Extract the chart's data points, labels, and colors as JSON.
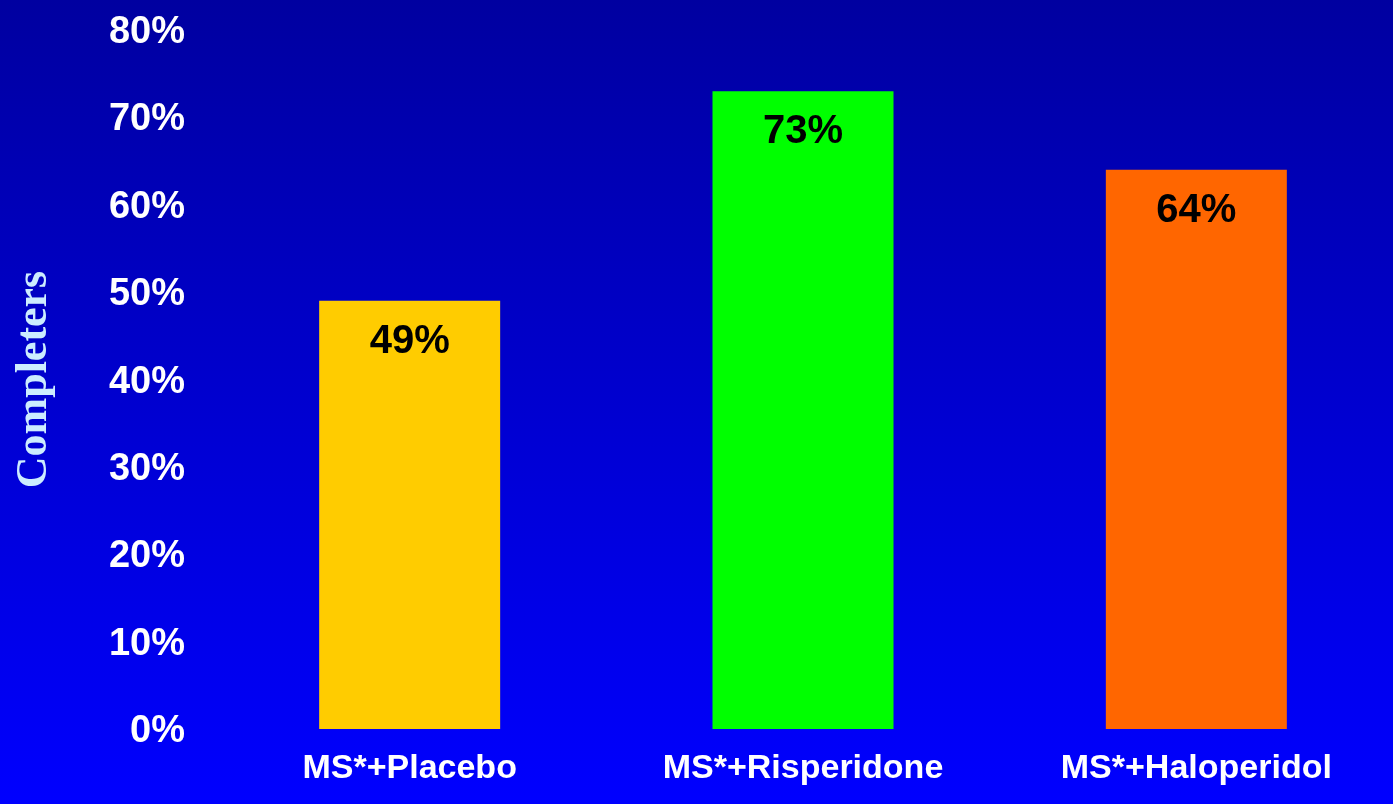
{
  "chart_data": {
    "type": "bar",
    "ylabel": "Completers",
    "categories": [
      "MS*+Placebo",
      "MS*+Risperidone",
      "MS*+Haloperidol"
    ],
    "values": [
      49,
      73,
      64
    ],
    "colors": [
      "#ffcc00",
      "#00ff00",
      "#ff6600"
    ],
    "value_labels": [
      "49%",
      "73%",
      "64%"
    ],
    "ylim": [
      0,
      80
    ],
    "yticks": [
      {
        "value": 0,
        "label": "0%"
      },
      {
        "value": 10,
        "label": "10%"
      },
      {
        "value": 20,
        "label": "20%"
      },
      {
        "value": 30,
        "label": "30%"
      },
      {
        "value": 40,
        "label": "40%"
      },
      {
        "value": 50,
        "label": "50%"
      },
      {
        "value": 60,
        "label": "60%"
      },
      {
        "value": 70,
        "label": "70%"
      },
      {
        "value": 80,
        "label": "80%"
      }
    ],
    "grid": false
  }
}
